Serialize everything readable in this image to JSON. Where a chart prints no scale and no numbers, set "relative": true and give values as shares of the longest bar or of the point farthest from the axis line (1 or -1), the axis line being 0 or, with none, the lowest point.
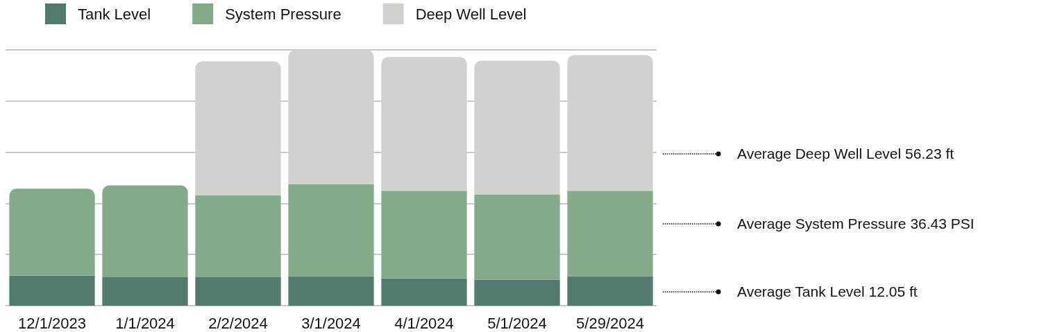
{
  "chart_data": {
    "type": "bar",
    "stacked": true,
    "relative": true,
    "categories": [
      "12/1/2023",
      "1/1/2024",
      "2/2/2024",
      "3/1/2024",
      "4/1/2024",
      "5/1/2024",
      "5/29/2024"
    ],
    "series": [
      {
        "name": "Tank Level",
        "color": "#527a70",
        "values": [
          0.117,
          0.111,
          0.111,
          0.115,
          0.107,
          0.101,
          0.115
        ]
      },
      {
        "name": "System Pressure",
        "color": "#84a98b",
        "values": [
          0.34,
          0.359,
          0.321,
          0.36,
          0.342,
          0.334,
          0.334
        ]
      },
      {
        "name": "Deep Well Level",
        "color": "#d1d2ce",
        "values": [
          null,
          null,
          0.523,
          0.525,
          0.523,
          0.523,
          0.531
        ]
      }
    ],
    "annotations": [
      "Average Deep Well Level 56.23 ft",
      "Average System Pressure 36.43 PSI",
      "Average Tank Level 12.05 ft"
    ],
    "grid": "y",
    "legend": "top left"
  }
}
